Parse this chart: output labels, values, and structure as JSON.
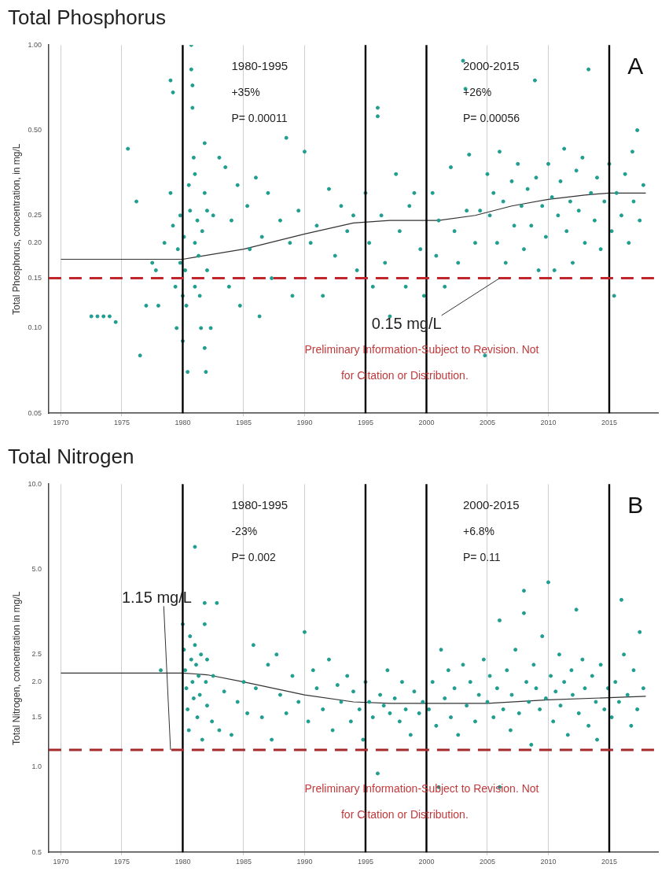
{
  "chart_data": [
    {
      "type": "scatter",
      "title": "Total Phosphorus",
      "ylabel": "Total Phosphorus, concentration, in mg/L",
      "log": "y",
      "grid": "x",
      "legend": false,
      "marker": "circle",
      "xlim": [
        1969,
        2019
      ],
      "xticks": [
        1970,
        1975,
        1980,
        1985,
        1990,
        1995,
        2000,
        2005,
        2010,
        2015
      ],
      "ylim": [
        0.05,
        1.0
      ],
      "yticks": [
        {
          "value": 0.05,
          "label": "0.05"
        },
        {
          "value": 0.1,
          "label": "0.10"
        },
        {
          "value": 0.15,
          "label": "0.15"
        },
        {
          "value": 0.2,
          "label": "0.20"
        },
        {
          "value": 0.25,
          "label": "0.25"
        },
        {
          "value": 0.5,
          "label": "0.50"
        },
        {
          "value": 1.0,
          "label": "1.00"
        }
      ],
      "series": [
        {
          "type": "scatter",
          "color": "#1f9e8f",
          "x": [
            1972.5,
            1973,
            1973.5,
            1974,
            1974.5,
            1975.5,
            1976.2,
            1976.5,
            1977,
            1977.5,
            1977.8,
            1978,
            1978.5,
            1979,
            1979.2,
            1979,
            1979.2,
            1979.4,
            1979.5,
            1979.6,
            1979.8,
            1979.8,
            1980,
            1980,
            1980.1,
            1980.2,
            1980.3,
            1980.4,
            1980.5,
            1980.6,
            1980.7,
            1980.7,
            1980.8,
            1980.8,
            1980.9,
            1981,
            1981,
            1981,
            1981.2,
            1981.3,
            1981.4,
            1981.5,
            1981.6,
            1981.8,
            1981.8,
            1981.8,
            1981.9,
            1982,
            1982,
            1982.3,
            1982.5,
            1983,
            1983.5,
            1983.8,
            1984,
            1984.5,
            1984.7,
            1985.3,
            1985.5,
            1986,
            1986.3,
            1986.5,
            1987,
            1987.3,
            1988,
            1988.5,
            1988.8,
            1989,
            1989.5,
            1990,
            1990.5,
            1991,
            1991.5,
            1992,
            1992.5,
            1993,
            1993.5,
            1994,
            1994.3,
            1995,
            1995.3,
            1995.6,
            1996,
            1996,
            1996.3,
            1996.6,
            1997,
            1997.5,
            1997.8,
            1998.3,
            1998.6,
            1999,
            1999.5,
            1999.8,
            2000.5,
            2000.8,
            2001,
            2001.5,
            2002,
            2002.3,
            2002.6,
            2003,
            2003.2,
            2003.3,
            2003.5,
            2004,
            2004.4,
            2004.8,
            2005,
            2005.2,
            2005.5,
            2005.8,
            2006,
            2006.3,
            2006.5,
            2007,
            2007.2,
            2007.5,
            2007.8,
            2008,
            2008.3,
            2008.6,
            2008.9,
            2009,
            2009.2,
            2009.5,
            2009.8,
            2010,
            2010.3,
            2010.5,
            2010.8,
            2011,
            2011.3,
            2011.5,
            2011.8,
            2012,
            2012.3,
            2012.5,
            2012.8,
            2013,
            2013.3,
            2013.5,
            2013.8,
            2014,
            2014.3,
            2014.6,
            2015,
            2015.2,
            2015.4,
            2015.6,
            2016,
            2016.3,
            2016.6,
            2016.9,
            2017,
            2017.3,
            2017.5,
            2017.8
          ],
          "values": [
            0.11,
            0.11,
            0.11,
            0.11,
            0.105,
            0.43,
            0.28,
            0.08,
            0.12,
            0.17,
            0.16,
            0.12,
            0.2,
            0.75,
            0.68,
            0.3,
            0.23,
            0.14,
            0.1,
            0.19,
            0.17,
            0.25,
            0.13,
            0.09,
            0.21,
            0.16,
            0.12,
            0.07,
            0.32,
            0.26,
            1.0,
            0.82,
            0.72,
            0.6,
            0.4,
            0.35,
            0.2,
            0.14,
            0.24,
            0.18,
            0.13,
            0.1,
            0.22,
            0.45,
            0.3,
            0.085,
            0.07,
            0.26,
            0.16,
            0.1,
            0.25,
            0.4,
            0.37,
            0.14,
            0.24,
            0.32,
            0.12,
            0.27,
            0.19,
            0.34,
            0.11,
            0.21,
            0.3,
            0.15,
            0.24,
            0.47,
            0.2,
            0.13,
            0.26,
            0.42,
            0.2,
            0.23,
            0.13,
            0.31,
            0.18,
            0.27,
            0.22,
            0.25,
            0.16,
            0.3,
            0.2,
            0.14,
            0.56,
            0.6,
            0.25,
            0.17,
            0.11,
            0.35,
            0.22,
            0.14,
            0.27,
            0.3,
            0.19,
            0.13,
            0.3,
            0.18,
            0.24,
            0.14,
            0.37,
            0.22,
            0.17,
            0.88,
            0.7,
            0.26,
            0.41,
            0.2,
            0.26,
            0.08,
            0.35,
            0.25,
            0.3,
            0.2,
            0.42,
            0.28,
            0.17,
            0.33,
            0.23,
            0.38,
            0.27,
            0.19,
            0.31,
            0.23,
            0.75,
            0.34,
            0.16,
            0.27,
            0.21,
            0.38,
            0.29,
            0.16,
            0.25,
            0.33,
            0.43,
            0.22,
            0.28,
            0.17,
            0.36,
            0.26,
            0.4,
            0.2,
            0.82,
            0.3,
            0.24,
            0.34,
            0.19,
            0.28,
            0.38,
            0.22,
            0.13,
            0.3,
            0.25,
            0.35,
            0.2,
            0.42,
            0.28,
            0.5,
            0.24,
            0.32
          ]
        },
        {
          "type": "line",
          "color": "#333333",
          "marker": "none",
          "x": [
            1970,
            1980,
            1981,
            1985,
            1990,
            1994,
            1997,
            2001,
            2004,
            2007,
            2010,
            2013,
            2015,
            2018
          ],
          "values": [
            0.175,
            0.175,
            0.178,
            0.19,
            0.215,
            0.235,
            0.24,
            0.24,
            0.25,
            0.27,
            0.285,
            0.295,
            0.3,
            0.3
          ]
        }
      ],
      "ref_lines": [
        {
          "axis": "x",
          "value": 1980,
          "color": "#000000"
        },
        {
          "axis": "x",
          "value": 1995,
          "color": "#000000"
        },
        {
          "axis": "x",
          "value": 2000,
          "color": "#000000"
        },
        {
          "axis": "x",
          "value": 2015,
          "color": "#000000"
        },
        {
          "axis": "y",
          "value": 0.15,
          "label": "0.15 mg/L",
          "color": "#c0272d",
          "line_style": "dashed"
        }
      ],
      "annotations": [
        "1980-1995",
        "+35%",
        "P= 0.00011",
        "2000-2015",
        "+26%",
        "P= 0.00056",
        "A",
        "Preliminary Information-Subject to Revision. Not",
        "for Citation or Distribution."
      ]
    },
    {
      "type": "scatter",
      "title": "Total Nitrogen",
      "ylabel": "Total Nitrogen, concentration in mg/L",
      "log": "y",
      "grid": "x",
      "legend": false,
      "marker": "circle",
      "xlim": [
        1969,
        2019
      ],
      "xticks": [
        1970,
        1975,
        1980,
        1985,
        1990,
        1995,
        2000,
        2005,
        2010,
        2015
      ],
      "ylim": [
        0.5,
        10.0
      ],
      "yticks": [
        {
          "value": 0.5,
          "label": "0.5"
        },
        {
          "value": 1.0,
          "label": "1.0"
        },
        {
          "value": 1.5,
          "label": "1.5"
        },
        {
          "value": 2.0,
          "label": "2.0"
        },
        {
          "value": 2.5,
          "label": "2.5"
        },
        {
          "value": 5.0,
          "label": "5.0"
        },
        {
          "value": 10.0,
          "label": "10.0"
        }
      ],
      "series": [
        {
          "type": "scatter",
          "color": "#1f9e8f",
          "x": [
            1978.2,
            1980,
            1980.1,
            1980.2,
            1980.3,
            1980.4,
            1980.5,
            1980.6,
            1980.7,
            1980.8,
            1980.9,
            1981,
            1981,
            1981.1,
            1981.2,
            1981.3,
            1981.4,
            1981.5,
            1981.6,
            1981.8,
            1981.8,
            1981.9,
            1982,
            1982,
            1982.4,
            1982.5,
            1982.8,
            1983,
            1983.4,
            1984,
            1984.5,
            1985,
            1985.3,
            1985.8,
            1986,
            1986.5,
            1987,
            1987.3,
            1987.7,
            1988,
            1988.5,
            1989,
            1989.5,
            1990,
            1990.3,
            1990.7,
            1991,
            1991.5,
            1992,
            1992.3,
            1992.7,
            1993,
            1993.5,
            1993.8,
            1994,
            1994.5,
            1994.8,
            1995,
            1995.3,
            1995.6,
            1996,
            1996.2,
            1996.5,
            1996.8,
            1997,
            1997.4,
            1997.8,
            1998,
            1998.3,
            1998.7,
            1999,
            1999.4,
            1999.7,
            2000.2,
            2000.5,
            2000.8,
            2001,
            2001.2,
            2001.5,
            2001.8,
            2002,
            2002.3,
            2002.6,
            2003,
            2003.3,
            2003.6,
            2004,
            2004.3,
            2004.7,
            2005,
            2005.2,
            2005.5,
            2005.8,
            2006,
            2006,
            2006.3,
            2006.6,
            2006.9,
            2007,
            2007.3,
            2007.6,
            2008,
            2008,
            2008.2,
            2008.4,
            2008.6,
            2008.8,
            2009,
            2009.3,
            2009.5,
            2009.8,
            2010,
            2010.2,
            2010.4,
            2010.6,
            2010.9,
            2011,
            2011.3,
            2011.6,
            2011.9,
            2012,
            2012.3,
            2012.5,
            2012.8,
            2013,
            2013.3,
            2013.6,
            2013.9,
            2014,
            2014.3,
            2014.6,
            2014.9,
            2015.2,
            2015.5,
            2015.8,
            2016,
            2016.2,
            2016.5,
            2016.8,
            2017,
            2017.3,
            2017.5,
            2017.8
          ],
          "values": [
            2.2,
            3.2,
            2.6,
            2.2,
            1.9,
            1.6,
            1.35,
            2.9,
            2.4,
            2.0,
            1.75,
            6.0,
            2.7,
            2.3,
            1.5,
            2.1,
            1.8,
            2.5,
            1.25,
            3.8,
            3.2,
            2.0,
            1.65,
            2.4,
            1.45,
            2.1,
            3.8,
            1.35,
            1.85,
            1.3,
            1.7,
            2.0,
            1.55,
            2.7,
            1.9,
            1.5,
            2.3,
            1.25,
            2.5,
            1.8,
            1.55,
            2.1,
            1.7,
            3.0,
            1.45,
            2.2,
            1.9,
            1.6,
            2.4,
            1.35,
            1.95,
            1.7,
            2.1,
            1.45,
            1.85,
            1.6,
            1.25,
            2.0,
            1.7,
            1.5,
            0.95,
            1.8,
            1.65,
            2.2,
            1.55,
            1.75,
            1.45,
            2.0,
            1.6,
            1.3,
            1.85,
            1.55,
            1.7,
            1.6,
            2.0,
            1.4,
            0.85,
            2.6,
            1.75,
            2.2,
            1.5,
            1.9,
            1.3,
            2.3,
            1.65,
            2.0,
            1.45,
            1.8,
            2.4,
            1.7,
            2.1,
            1.5,
            1.9,
            0.85,
            3.3,
            1.6,
            2.2,
            1.35,
            1.8,
            2.6,
            1.55,
            4.2,
            3.5,
            2.0,
            1.7,
            1.2,
            2.3,
            1.9,
            1.6,
            2.9,
            1.75,
            4.5,
            2.1,
            1.45,
            1.85,
            2.5,
            1.65,
            2.0,
            1.3,
            2.2,
            1.8,
            3.6,
            1.55,
            2.4,
            1.9,
            1.4,
            2.1,
            1.7,
            1.25,
            2.3,
            1.6,
            1.9,
            1.5,
            2.0,
            1.7,
            3.9,
            2.5,
            1.8,
            1.4,
            2.2,
            1.6,
            3.0,
            1.9
          ]
        },
        {
          "type": "line",
          "color": "#333333",
          "marker": "none",
          "x": [
            1970,
            1980,
            1982,
            1985,
            1990,
            1994,
            1997,
            2000,
            2005,
            2010,
            2015,
            2018
          ],
          "values": [
            2.15,
            2.15,
            2.12,
            2.0,
            1.8,
            1.7,
            1.68,
            1.68,
            1.68,
            1.73,
            1.76,
            1.78
          ]
        }
      ],
      "ref_lines": [
        {
          "axis": "x",
          "value": 1980,
          "color": "#000000"
        },
        {
          "axis": "x",
          "value": 1995,
          "color": "#000000"
        },
        {
          "axis": "x",
          "value": 2000,
          "color": "#000000"
        },
        {
          "axis": "x",
          "value": 2015,
          "color": "#000000"
        },
        {
          "axis": "y",
          "value": 1.15,
          "label": "1.15 mg/L",
          "color": "#a52a2a",
          "line_style": "dashed"
        }
      ],
      "annotations": [
        "1980-1995",
        "-23%",
        "P= 0.002",
        "2000-2015",
        "+6.8%",
        "P= 0.11",
        "B",
        "Preliminary Information-Subject to Revision. Not",
        "for Citation or Distribution."
      ]
    }
  ]
}
